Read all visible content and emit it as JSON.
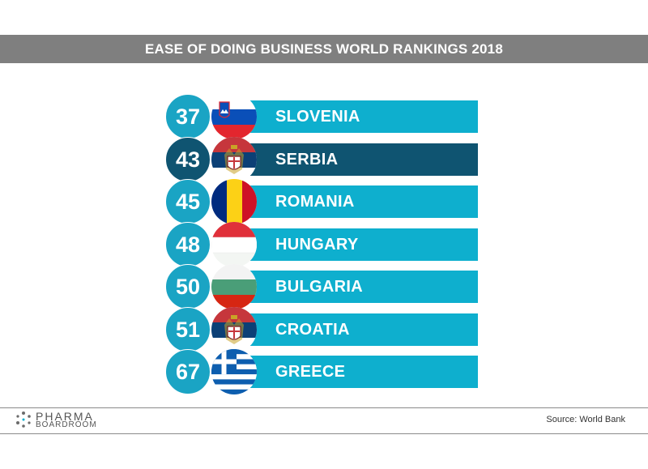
{
  "title": "EASE OF DOING BUSINESS WORLD RANKINGS 2018",
  "colors": {
    "bar_default": "#0eafce",
    "circle_default": "#1aa4c4",
    "bar_highlight": "#0f5471",
    "circle_highlight": "#0f5471",
    "title_bg": "#7f7f7f"
  },
  "chart_data": {
    "type": "table",
    "categories": [
      "SLOVENIA",
      "SERBIA",
      "ROMANIA",
      "HUNGARY",
      "BULGARIA",
      "CROATIA",
      "GREECE"
    ],
    "values": [
      37,
      43,
      45,
      48,
      50,
      51,
      67
    ],
    "highlight": "SERBIA",
    "rows": [
      {
        "rank": "37",
        "country": "SLOVENIA",
        "flag": "slovenia-flag-icon"
      },
      {
        "rank": "43",
        "country": "SERBIA",
        "flag": "serbia-flag-icon"
      },
      {
        "rank": "45",
        "country": "ROMANIA",
        "flag": "romania-flag-icon"
      },
      {
        "rank": "48",
        "country": "HUNGARY",
        "flag": "hungary-flag-icon"
      },
      {
        "rank": "50",
        "country": "BULGARIA",
        "flag": "bulgaria-flag-icon"
      },
      {
        "rank": "51",
        "country": "CROATIA",
        "flag": "serbia-flag-icon"
      },
      {
        "rank": "67",
        "country": "GREECE",
        "flag": "greece-flag-icon"
      }
    ]
  },
  "footer": {
    "logo_line1": "PHARMA",
    "logo_line2": "BOARDROOM",
    "source": "Source: World Bank"
  }
}
